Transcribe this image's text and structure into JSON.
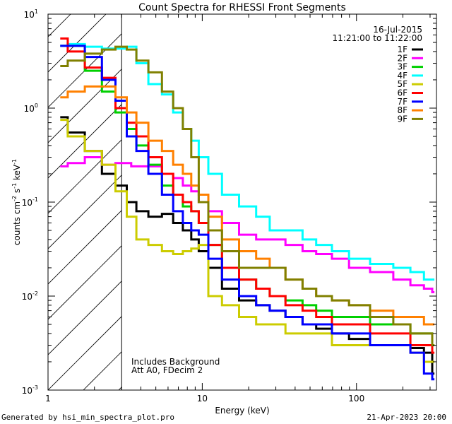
{
  "chart_data": {
    "type": "line",
    "title": "Count Spectra for RHESSI Front Segments",
    "xlabel": "Energy (keV)",
    "ylabel_main": "counts cm",
    "ylabel_exp1": "-2",
    "ylabel_mid": " s",
    "ylabel_exp2": "-1",
    "ylabel_end": " keV",
    "ylabel_exp3": "-1",
    "xscale": "log",
    "yscale": "log",
    "xlim": [
      1,
      330
    ],
    "ylim": [
      0.001,
      10
    ],
    "x_ticks": [
      {
        "value": 1,
        "label": "1"
      },
      {
        "value": 10,
        "label": "10"
      },
      {
        "value": 100,
        "label": "100"
      }
    ],
    "y_ticks": [
      {
        "value": 0.001,
        "base": "10",
        "exp": "-3"
      },
      {
        "value": 0.01,
        "base": "10",
        "exp": "-2"
      },
      {
        "value": 0.1,
        "base": "10",
        "exp": "-1"
      },
      {
        "value": 1,
        "base": "10",
        "exp": "0"
      },
      {
        "value": 10,
        "base": "10",
        "exp": "1"
      }
    ],
    "hatch_region": {
      "xmin": 1,
      "xmax": 3
    },
    "date": "16-Jul-2015",
    "time_range": "11:21:00 to 11:22:00",
    "annotations": [
      "Includes Background",
      "Att A0, FDecim 2"
    ],
    "legend_position": "top-right",
    "series": [
      {
        "name": "1F",
        "color": "#000000",
        "points": [
          [
            1.2,
            0.8
          ],
          [
            1.5,
            0.55
          ],
          [
            2,
            0.35
          ],
          [
            2.5,
            0.2
          ],
          [
            3,
            0.15
          ],
          [
            3.5,
            0.1
          ],
          [
            4,
            0.08
          ],
          [
            5,
            0.07
          ],
          [
            6,
            0.075
          ],
          [
            7,
            0.06
          ],
          [
            8,
            0.05
          ],
          [
            9,
            0.04
          ],
          [
            10,
            0.03
          ],
          [
            12,
            0.02
          ],
          [
            15,
            0.012
          ],
          [
            20,
            0.009
          ],
          [
            25,
            0.008
          ],
          [
            30,
            0.007
          ],
          [
            40,
            0.006
          ],
          [
            50,
            0.005
          ],
          [
            60,
            0.0045
          ],
          [
            80,
            0.004
          ],
          [
            100,
            0.0035
          ],
          [
            150,
            0.003
          ],
          [
            200,
            0.003
          ],
          [
            250,
            0.0028
          ],
          [
            300,
            0.0025
          ],
          [
            320,
            0.0015
          ]
        ]
      },
      {
        "name": "2F",
        "color": "#ff00ff",
        "points": [
          [
            1.2,
            0.24
          ],
          [
            1.5,
            0.26
          ],
          [
            2,
            0.3
          ],
          [
            2.5,
            0.25
          ],
          [
            3,
            0.26
          ],
          [
            4,
            0.24
          ],
          [
            5,
            0.24
          ],
          [
            6,
            0.2
          ],
          [
            7,
            0.18
          ],
          [
            8,
            0.15
          ],
          [
            9,
            0.13
          ],
          [
            10,
            0.1
          ],
          [
            12,
            0.08
          ],
          [
            15,
            0.06
          ],
          [
            20,
            0.045
          ],
          [
            25,
            0.04
          ],
          [
            30,
            0.04
          ],
          [
            40,
            0.035
          ],
          [
            50,
            0.03
          ],
          [
            60,
            0.028
          ],
          [
            80,
            0.025
          ],
          [
            100,
            0.02
          ],
          [
            150,
            0.018
          ],
          [
            200,
            0.015
          ],
          [
            250,
            0.013
          ],
          [
            300,
            0.012
          ],
          [
            320,
            0.011
          ]
        ]
      },
      {
        "name": "3F",
        "color": "#00d000",
        "points": [
          [
            1.2,
            4.6
          ],
          [
            1.5,
            4.6
          ],
          [
            2,
            2.5
          ],
          [
            2.5,
            1.5
          ],
          [
            3,
            0.9
          ],
          [
            3.5,
            0.6
          ],
          [
            4,
            0.4
          ],
          [
            5,
            0.25
          ],
          [
            6,
            0.15
          ],
          [
            7,
            0.12
          ],
          [
            8,
            0.09
          ],
          [
            9,
            0.08
          ],
          [
            10,
            0.06
          ],
          [
            12,
            0.035
          ],
          [
            15,
            0.02
          ],
          [
            20,
            0.015
          ],
          [
            25,
            0.012
          ],
          [
            30,
            0.01
          ],
          [
            40,
            0.009
          ],
          [
            50,
            0.008
          ],
          [
            60,
            0.007
          ],
          [
            80,
            0.006
          ],
          [
            100,
            0.006
          ],
          [
            150,
            0.005
          ],
          [
            200,
            0.005
          ],
          [
            250,
            0.004
          ],
          [
            300,
            0.004
          ],
          [
            320,
            0.003
          ]
        ]
      },
      {
        "name": "4F",
        "color": "#00ffff",
        "points": [
          [
            1.2,
            4.6
          ],
          [
            1.5,
            4.8
          ],
          [
            2,
            4.5
          ],
          [
            2.5,
            4.3
          ],
          [
            3,
            4.3
          ],
          [
            3.5,
            4.5
          ],
          [
            4,
            3
          ],
          [
            5,
            1.8
          ],
          [
            6,
            1.4
          ],
          [
            7,
            0.9
          ],
          [
            8,
            0.6
          ],
          [
            9,
            0.45
          ],
          [
            10,
            0.3
          ],
          [
            12,
            0.2
          ],
          [
            15,
            0.12
          ],
          [
            20,
            0.09
          ],
          [
            25,
            0.07
          ],
          [
            30,
            0.05
          ],
          [
            40,
            0.05
          ],
          [
            50,
            0.04
          ],
          [
            60,
            0.035
          ],
          [
            80,
            0.03
          ],
          [
            100,
            0.025
          ],
          [
            150,
            0.022
          ],
          [
            200,
            0.02
          ],
          [
            250,
            0.018
          ],
          [
            300,
            0.015
          ],
          [
            320,
            0.015
          ]
        ]
      },
      {
        "name": "5F",
        "color": "#cccc00",
        "points": [
          [
            1.2,
            0.75
          ],
          [
            1.5,
            0.5
          ],
          [
            2,
            0.35
          ],
          [
            2.5,
            0.25
          ],
          [
            3,
            0.13
          ],
          [
            3.5,
            0.07
          ],
          [
            4,
            0.04
          ],
          [
            5,
            0.035
          ],
          [
            6,
            0.03
          ],
          [
            7,
            0.028
          ],
          [
            8,
            0.03
          ],
          [
            9,
            0.032
          ],
          [
            10,
            0.035
          ],
          [
            12,
            0.01
          ],
          [
            15,
            0.008
          ],
          [
            20,
            0.006
          ],
          [
            25,
            0.005
          ],
          [
            30,
            0.005
          ],
          [
            40,
            0.004
          ],
          [
            50,
            0.004
          ],
          [
            60,
            0.004
          ],
          [
            80,
            0.003
          ],
          [
            100,
            0.003
          ],
          [
            150,
            0.003
          ],
          [
            200,
            0.003
          ],
          [
            250,
            0.0025
          ],
          [
            300,
            0.002
          ],
          [
            320,
            0.002
          ]
        ]
      },
      {
        "name": "6F",
        "color": "#ff0000",
        "points": [
          [
            1.2,
            5.5
          ],
          [
            1.5,
            4
          ],
          [
            2,
            2.7
          ],
          [
            2.5,
            2.1
          ],
          [
            3,
            1
          ],
          [
            3.5,
            0.7
          ],
          [
            4,
            0.5
          ],
          [
            5,
            0.3
          ],
          [
            6,
            0.2
          ],
          [
            7,
            0.12
          ],
          [
            8,
            0.1
          ],
          [
            9,
            0.08
          ],
          [
            10,
            0.06
          ],
          [
            12,
            0.035
          ],
          [
            15,
            0.02
          ],
          [
            20,
            0.015
          ],
          [
            25,
            0.012
          ],
          [
            30,
            0.01
          ],
          [
            40,
            0.008
          ],
          [
            50,
            0.007
          ],
          [
            60,
            0.006
          ],
          [
            80,
            0.005
          ],
          [
            100,
            0.005
          ],
          [
            150,
            0.004
          ],
          [
            200,
            0.004
          ],
          [
            250,
            0.003
          ],
          [
            300,
            0.003
          ],
          [
            320,
            0.0025
          ]
        ]
      },
      {
        "name": "7F",
        "color": "#0000ff",
        "points": [
          [
            1.2,
            4.6
          ],
          [
            1.5,
            4.6
          ],
          [
            2,
            3.5
          ],
          [
            2.5,
            2
          ],
          [
            3,
            1.2
          ],
          [
            3.5,
            0.5
          ],
          [
            4,
            0.35
          ],
          [
            5,
            0.2
          ],
          [
            6,
            0.12
          ],
          [
            7,
            0.08
          ],
          [
            8,
            0.06
          ],
          [
            9,
            0.05
          ],
          [
            10,
            0.045
          ],
          [
            12,
            0.025
          ],
          [
            15,
            0.015
          ],
          [
            20,
            0.01
          ],
          [
            25,
            0.008
          ],
          [
            30,
            0.007
          ],
          [
            40,
            0.006
          ],
          [
            50,
            0.005
          ],
          [
            60,
            0.005
          ],
          [
            80,
            0.004
          ],
          [
            100,
            0.004
          ],
          [
            150,
            0.003
          ],
          [
            200,
            0.003
          ],
          [
            250,
            0.0025
          ],
          [
            300,
            0.0015
          ],
          [
            320,
            0.0013
          ]
        ]
      },
      {
        "name": "8F",
        "color": "#ff8000",
        "points": [
          [
            1.2,
            1.3
          ],
          [
            1.5,
            1.5
          ],
          [
            2,
            1.7
          ],
          [
            2.5,
            1.7
          ],
          [
            3,
            1.3
          ],
          [
            3.5,
            0.9
          ],
          [
            4,
            0.7
          ],
          [
            5,
            0.45
          ],
          [
            6,
            0.35
          ],
          [
            7,
            0.25
          ],
          [
            8,
            0.2
          ],
          [
            9,
            0.15
          ],
          [
            10,
            0.12
          ],
          [
            12,
            0.07
          ],
          [
            15,
            0.04
          ],
          [
            20,
            0.03
          ],
          [
            25,
            0.025
          ],
          [
            30,
            0.02
          ],
          [
            40,
            0.015
          ],
          [
            50,
            0.012
          ],
          [
            60,
            0.01
          ],
          [
            80,
            0.009
          ],
          [
            100,
            0.008
          ],
          [
            150,
            0.007
          ],
          [
            200,
            0.006
          ],
          [
            250,
            0.006
          ],
          [
            300,
            0.005
          ],
          [
            320,
            0.005
          ]
        ]
      },
      {
        "name": "9F",
        "color": "#808000",
        "points": [
          [
            1.2,
            2.8
          ],
          [
            1.5,
            3.2
          ],
          [
            2,
            3.8
          ],
          [
            2.5,
            4.2
          ],
          [
            3,
            4.5
          ],
          [
            3.5,
            4.2
          ],
          [
            4,
            3.2
          ],
          [
            5,
            2.4
          ],
          [
            6,
            1.5
          ],
          [
            7,
            1
          ],
          [
            8,
            0.6
          ],
          [
            9,
            0.3
          ],
          [
            10,
            0.1
          ],
          [
            12,
            0.05
          ],
          [
            15,
            0.03
          ],
          [
            20,
            0.02
          ],
          [
            25,
            0.02
          ],
          [
            30,
            0.02
          ],
          [
            40,
            0.015
          ],
          [
            50,
            0.012
          ],
          [
            60,
            0.01
          ],
          [
            80,
            0.009
          ],
          [
            100,
            0.008
          ],
          [
            150,
            0.006
          ],
          [
            200,
            0.005
          ],
          [
            250,
            0.004
          ],
          [
            300,
            0.004
          ],
          [
            320,
            0.003
          ]
        ]
      }
    ]
  },
  "footer": {
    "generated_by": "Generated by hsi_min_spectra_plot.pro",
    "timestamp": "21-Apr-2023 20:00"
  }
}
